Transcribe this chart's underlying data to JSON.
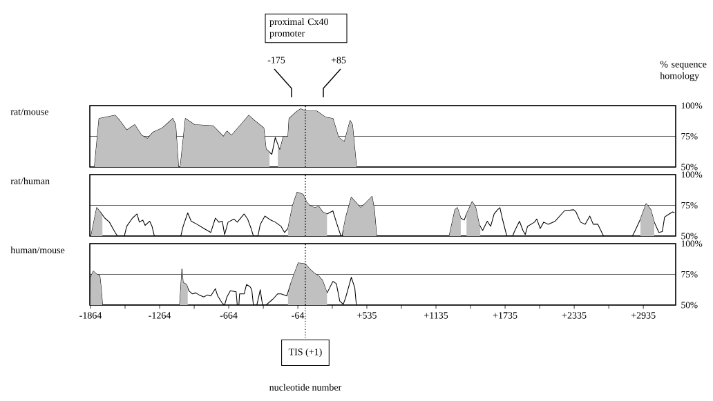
{
  "chart_data": [
    {
      "type": "line",
      "title": "rat/mouse",
      "ylabel": "% sequence homology",
      "annotations": [
        "proximal Cx40 promoter",
        "-175",
        "+85"
      ],
      "xlim": [
        -1870,
        3216
      ],
      "ylim": [
        50,
        100
      ],
      "yticks": [
        {
          "value": 50,
          "label": "50%"
        },
        {
          "value": 75,
          "label": "75%"
        },
        {
          "value": 100,
          "label": "100%"
        }
      ],
      "grid": "y",
      "tick_labels": "y",
      "ref_lines": [
        {
          "axis": "x",
          "value": 1,
          "line_style": "dotted",
          "color": "#000000"
        }
      ],
      "series": [
        {
          "color": "#000000",
          "x": [
            -1830,
            -1790,
            -1650,
            -1610,
            -1550,
            -1480,
            -1420,
            -1370,
            -1320,
            -1240,
            -1150,
            -1125,
            -1100,
            -1085,
            -1040,
            -960,
            -800,
            -710,
            -680,
            -640,
            -560,
            -490,
            -440,
            -360,
            -340,
            -290,
            -260,
            -220,
            -190,
            -150,
            -140,
            -80,
            -40,
            10,
            100,
            180,
            240,
            290,
            340,
            390,
            410,
            445
          ],
          "values": [
            50,
            89.5,
            92.1,
            87.8,
            80.1,
            84.4,
            75.8,
            73.2,
            78.4,
            81.8,
            89.5,
            84.4,
            50,
            50,
            89.5,
            84.4,
            83.5,
            74.9,
            79.2,
            75.8,
            84.4,
            92.1,
            87.8,
            81.8,
            64.6,
            60.3,
            74.1,
            63.8,
            74.9,
            74.9,
            89.5,
            94.7,
            97.3,
            95.5,
            95.5,
            90.4,
            89.5,
            74.1,
            70.6,
            87.8,
            84.4,
            50
          ]
        },
        {
          "type": "area",
          "color": "#c0c0c0",
          "x": [
            -1830,
            -1790,
            -1650,
            -1610,
            -1550,
            -1480,
            -1420,
            -1370,
            -1320,
            -1240,
            -1150,
            -1125,
            -1100,
            -1092,
            -1085,
            -1040,
            -960,
            -800,
            -710,
            -680,
            -640,
            -560,
            -490,
            -440,
            -360,
            -340,
            -310,
            -275,
            -238,
            -220,
            -190,
            -150,
            -140,
            -80,
            -40,
            10,
            100,
            180,
            240,
            290,
            340,
            390,
            410,
            445
          ],
          "values": [
            50,
            89.5,
            92.1,
            87.8,
            80.1,
            84.4,
            75.8,
            73.2,
            78.4,
            81.8,
            89.5,
            84.4,
            50,
            null,
            50,
            89.5,
            84.4,
            83.5,
            74.9,
            79.2,
            75.8,
            84.4,
            92.1,
            87.8,
            81.8,
            64.6,
            62,
            null,
            66,
            63.8,
            74.9,
            74.9,
            89.5,
            94.7,
            97.3,
            95.5,
            95.5,
            90.4,
            89.5,
            74.1,
            70.6,
            87.8,
            84.4,
            50
          ]
        }
      ]
    },
    {
      "type": "line",
      "title": "rat/human",
      "xlim": [
        -1870,
        3216
      ],
      "ylim": [
        50,
        100
      ],
      "yticks": [
        {
          "value": 50,
          "label": "50%"
        },
        {
          "value": 75,
          "label": "75%"
        },
        {
          "value": 100,
          "label": "100%"
        }
      ],
      "grid": "y",
      "tick_labels": "y",
      "ref_lines": [
        {
          "axis": "x",
          "value": 1,
          "line_style": "dotted",
          "color": "#000000"
        }
      ],
      "series": [
        {
          "color": "#000000",
          "x": [
            -1860,
            -1810,
            -1780,
            -1740,
            -1700,
            -1670,
            -1650,
            -1630,
            -1570,
            -1550,
            -1500,
            -1460,
            -1440,
            -1410,
            -1390,
            -1350,
            -1330,
            -1310,
            -1080,
            -1060,
            -1020,
            -990,
            -940,
            -880,
            -820,
            -780,
            -750,
            -720,
            -700,
            -690,
            -670,
            -620,
            -590,
            -530,
            -500,
            -470,
            -450,
            -410,
            -390,
            -350,
            -300,
            -260,
            -210,
            -180,
            -150,
            -110,
            -70,
            -20,
            10,
            40,
            80,
            120,
            150,
            190,
            240,
            270,
            310,
            320,
            350,
            400,
            480,
            520,
            580,
            600,
            620,
            1250,
            1300,
            1320,
            1350,
            1380,
            1400,
            1450,
            1480,
            1510,
            1540,
            1580,
            1610,
            1640,
            1670,
            1690,
            1710,
            1750,
            1800,
            1820,
            1860,
            1890,
            1910,
            1930,
            1990,
            2010,
            2040,
            2070,
            2110,
            2170,
            2250,
            2330,
            2350,
            2390,
            2430,
            2470,
            2500,
            2540,
            2590,
            2840,
            2860,
            2910,
            2960,
            3000,
            3030,
            3070,
            3100,
            3120,
            3160,
            3190,
            3206
          ],
          "values": [
            50,
            73.1,
            69.7,
            64.6,
            61.3,
            56.2,
            52.9,
            50,
            50,
            57.9,
            64.6,
            68,
            61.3,
            63,
            58.7,
            62.1,
            57.9,
            50,
            50,
            57.9,
            68.8,
            62.1,
            59.6,
            56.2,
            52.9,
            64.6,
            61.3,
            62.1,
            51.2,
            54.5,
            61.3,
            63.8,
            61.3,
            68,
            63.8,
            56.2,
            50,
            50.4,
            59.6,
            66.3,
            63,
            61.3,
            57.9,
            52.9,
            56.2,
            74.7,
            85.7,
            84,
            78.1,
            74.7,
            73.1,
            73.9,
            69.7,
            68,
            70.5,
            61.3,
            50,
            50,
            64.6,
            81.5,
            73.1,
            76.4,
            82.3,
            71.4,
            50,
            50,
            71.4,
            73.1,
            64.6,
            63,
            68,
            78.1,
            73.1,
            59.6,
            54.5,
            62.1,
            57.9,
            68,
            71.4,
            73.1,
            64.6,
            50,
            50,
            54.5,
            62.1,
            54.5,
            51.2,
            57.9,
            61.3,
            63.8,
            56.2,
            61.3,
            59.6,
            62.1,
            70.5,
            71.4,
            69.7,
            61.3,
            59.6,
            66.3,
            59.6,
            59.6,
            50,
            50,
            53.7,
            63.8,
            76.4,
            71.4,
            61.3,
            52.9,
            53.7,
            65.5,
            68,
            69.7,
            68.8
          ]
        },
        {
          "type": "area",
          "color": "#c0c0c0",
          "x": [
            -1860,
            -1810,
            -1780,
            -1760,
            -1755,
            -150,
            -110,
            -70,
            -20,
            10,
            40,
            80,
            120,
            150,
            190,
            195,
            330,
            350,
            400,
            480,
            520,
            580,
            600,
            620,
            625,
            1250,
            1300,
            1320,
            1350,
            1355,
            1400,
            1450,
            1480,
            1510,
            1520,
            1525,
            2910,
            2960,
            3000,
            3030
          ],
          "values": [
            50,
            73.1,
            69.7,
            66,
            null,
            56.2,
            74.7,
            85.7,
            84,
            78.1,
            74.7,
            73.1,
            73.9,
            69.7,
            68,
            null,
            55,
            64.6,
            81.5,
            73.1,
            76.4,
            82.3,
            71.4,
            50,
            null,
            50,
            71.4,
            73.1,
            64.6,
            null,
            68,
            78.1,
            73.1,
            59.6,
            57,
            null,
            63.8,
            76.4,
            71.4,
            61.3
          ]
        }
      ]
    },
    {
      "type": "line",
      "title": "human/mouse",
      "xlabel": "nucleotide number",
      "xlim": [
        -1870,
        3216
      ],
      "ylim": [
        50,
        100
      ],
      "xticks": [
        -1864,
        {
          "value": -1564,
          "label": null
        },
        -1264,
        {
          "value": -964,
          "label": null
        },
        -664,
        {
          "value": -364,
          "label": null
        },
        -64,
        {
          "value": 235,
          "label": null
        },
        {
          "value": 535,
          "label": "+535"
        },
        {
          "value": 835,
          "label": null
        },
        {
          "value": 1135,
          "label": "+1135"
        },
        {
          "value": 1435,
          "label": null
        },
        {
          "value": 1735,
          "label": "+1735"
        },
        {
          "value": 2035,
          "label": null
        },
        {
          "value": 2335,
          "label": "+2335"
        },
        {
          "value": 2635,
          "label": null
        },
        {
          "value": 2935,
          "label": "+2935"
        }
      ],
      "yticks": [
        {
          "value": 50,
          "label": "50%"
        },
        {
          "value": 75,
          "label": "75%"
        },
        {
          "value": 100,
          "label": "100%"
        }
      ],
      "grid": "y",
      "ref_lines": [
        {
          "axis": "x",
          "value": 1,
          "label": "TIS (+1)",
          "line_style": "dotted",
          "color": "#000000"
        }
      ],
      "series": [
        {
          "color": "#000000",
          "x": [
            -1866,
            -1864,
            -1840,
            -1810,
            -1784,
            -1770,
            -1760,
            -1120,
            -1090,
            -1070,
            -1060,
            -1030,
            -1010,
            -980,
            -950,
            -920,
            -880,
            -850,
            -820,
            -780,
            -760,
            -720,
            -700,
            -680,
            -650,
            -600,
            -590,
            -576,
            -570,
            -530,
            -510,
            -480,
            -464,
            -450,
            -420,
            -390,
            -380,
            -370,
            -340,
            -280,
            -240,
            -210,
            -160,
            -120,
            -60,
            0,
            40,
            80,
            120,
            150,
            190,
            240,
            270,
            300,
            330,
            350,
            400,
            430,
            444
          ],
          "values": [
            50,
            72.6,
            77.6,
            75.1,
            74.2,
            62.5,
            50,
            50,
            50,
            79.3,
            68.4,
            66.7,
            61.6,
            59.1,
            59.9,
            58.2,
            56.6,
            58.2,
            57.4,
            63.3,
            57.4,
            51.5,
            50,
            56.6,
            61.6,
            60.8,
            50,
            50,
            59.1,
            59.1,
            66.7,
            65,
            62.5,
            50,
            50,
            62.5,
            55.7,
            50,
            50,
            54.9,
            59.1,
            59.1,
            57.4,
            69.2,
            84.3,
            83.5,
            79.3,
            75.9,
            73.4,
            70,
            59.9,
            69.2,
            67.5,
            53.2,
            50.7,
            55.7,
            72.6,
            64.1,
            50
          ]
        },
        {
          "type": "area",
          "color": "#c0c0c0",
          "x": [
            -1866,
            -1864,
            -1840,
            -1810,
            -1784,
            -1770,
            -1760,
            -1100,
            -1090,
            -1070,
            -1060,
            -1030,
            -1020,
            -1000,
            -150,
            -120,
            -60,
            0,
            40,
            80,
            120,
            150,
            190
          ],
          "values": [
            50,
            72.6,
            77.6,
            75.1,
            74.2,
            62.5,
            50,
            null,
            50,
            79.3,
            68.4,
            66.7,
            64,
            null,
            58,
            69.2,
            84.3,
            83.5,
            79.3,
            75.9,
            73.4,
            70,
            59.9
          ]
        }
      ]
    }
  ]
}
